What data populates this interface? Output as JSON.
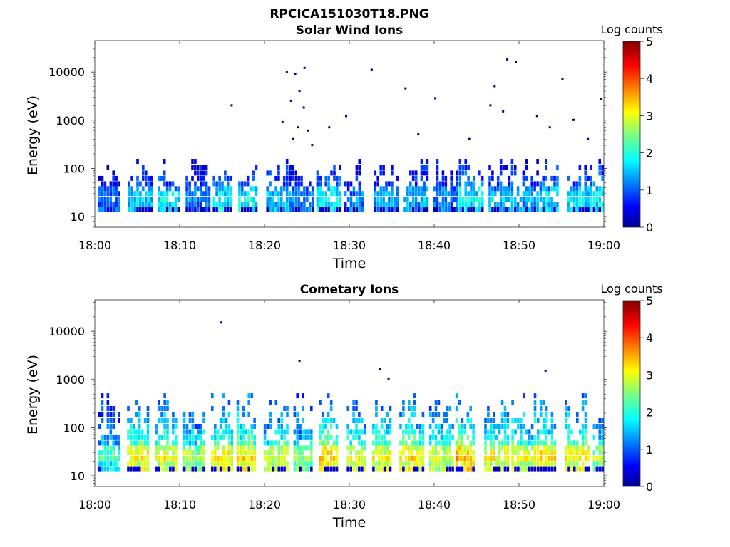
{
  "figure_title": "RPCICA151030T18.PNG",
  "chart_data": [
    {
      "type": "heatmap",
      "title": "Solar Wind Ions",
      "xlabel": "Time",
      "ylabel": "Energy (eV)",
      "x_ticks": [
        "18:00",
        "18:10",
        "18:20",
        "18:30",
        "18:40",
        "18:50",
        "19:00"
      ],
      "x_range": [
        "18:00",
        "19:00"
      ],
      "y_scale": "log",
      "y_ticks": [
        "10",
        "100",
        "1000",
        "10000"
      ],
      "y_range": [
        6,
        45000
      ],
      "colorbar": {
        "label": "Log counts",
        "ticks": [
          "0",
          "1",
          "2",
          "3",
          "4",
          "5"
        ],
        "range": [
          0,
          5
        ],
        "colormap": "jet"
      },
      "bursts": [
        {
          "t": 1.5,
          "level": 1.1
        },
        {
          "t": 5.0,
          "level": 1.6
        },
        {
          "t": 8.5,
          "level": 1.8
        },
        {
          "t": 11.8,
          "level": 1.2
        },
        {
          "t": 15.0,
          "level": 1.8
        },
        {
          "t": 18.0,
          "level": 2.0
        },
        {
          "t": 21.3,
          "level": 1.6
        },
        {
          "t": 24.0,
          "level": 1.2
        },
        {
          "t": 27.2,
          "level": 1.9
        },
        {
          "t": 30.5,
          "level": 1.3
        },
        {
          "t": 34.0,
          "level": 1.4
        },
        {
          "t": 37.5,
          "level": 1.5
        },
        {
          "t": 41.0,
          "level": 1.2
        },
        {
          "t": 44.0,
          "level": 1.9
        },
        {
          "t": 47.5,
          "level": 1.5
        },
        {
          "t": 50.5,
          "level": 1.4
        },
        {
          "t": 53.5,
          "level": 1.8
        },
        {
          "t": 56.8,
          "level": 1.8
        },
        {
          "t": 59.8,
          "level": 1.9
        }
      ],
      "sparse_points": [
        {
          "t": 22.5,
          "e": 10000
        },
        {
          "t": 23.5,
          "e": 9000
        },
        {
          "t": 24.6,
          "e": 12000
        },
        {
          "t": 24.0,
          "e": 4000
        },
        {
          "t": 23.0,
          "e": 2500
        },
        {
          "t": 24.5,
          "e": 1800
        },
        {
          "t": 22.0,
          "e": 900
        },
        {
          "t": 23.8,
          "e": 700
        },
        {
          "t": 25.0,
          "e": 600
        },
        {
          "t": 23.2,
          "e": 400
        },
        {
          "t": 25.5,
          "e": 300
        },
        {
          "t": 16.0,
          "e": 2000
        },
        {
          "t": 32.5,
          "e": 11000
        },
        {
          "t": 36.5,
          "e": 4500
        },
        {
          "t": 40.0,
          "e": 2800
        },
        {
          "t": 48.5,
          "e": 18000
        },
        {
          "t": 49.5,
          "e": 16000
        },
        {
          "t": 47.0,
          "e": 5000
        },
        {
          "t": 46.5,
          "e": 2000
        },
        {
          "t": 48.0,
          "e": 1500
        },
        {
          "t": 52.0,
          "e": 1200
        },
        {
          "t": 55.0,
          "e": 7000
        },
        {
          "t": 56.3,
          "e": 1000
        },
        {
          "t": 59.5,
          "e": 2700
        },
        {
          "t": 29.5,
          "e": 1200
        },
        {
          "t": 27.5,
          "e": 700
        },
        {
          "t": 44.0,
          "e": 400
        },
        {
          "t": 38.0,
          "e": 500
        },
        {
          "t": 53.5,
          "e": 700
        },
        {
          "t": 58.0,
          "e": 400
        }
      ]
    },
    {
      "type": "heatmap",
      "title": "Cometary Ions",
      "xlabel": "Time",
      "ylabel": "Energy (eV)",
      "x_ticks": [
        "18:00",
        "18:10",
        "18:20",
        "18:30",
        "18:40",
        "18:50",
        "19:00"
      ],
      "x_range": [
        "18:00",
        "19:00"
      ],
      "y_scale": "log",
      "y_ticks": [
        "10",
        "100",
        "1000",
        "10000"
      ],
      "y_range": [
        6,
        45000
      ],
      "colorbar": {
        "label": "Log counts",
        "ticks": [
          "0",
          "1",
          "2",
          "3",
          "4",
          "5"
        ],
        "range": [
          0,
          5
        ],
        "colormap": "jet"
      },
      "bursts": [
        {
          "t": 1.5,
          "level": 1.9
        },
        {
          "t": 4.9,
          "level": 3.0
        },
        {
          "t": 8.2,
          "level": 2.9
        },
        {
          "t": 11.5,
          "level": 2.6
        },
        {
          "t": 14.8,
          "level": 3.0
        },
        {
          "t": 17.8,
          "level": 3.1
        },
        {
          "t": 21.0,
          "level": 2.8
        },
        {
          "t": 24.5,
          "level": 2.4
        },
        {
          "t": 27.5,
          "level": 3.3
        },
        {
          "t": 30.8,
          "level": 2.9
        },
        {
          "t": 33.8,
          "level": 3.0
        },
        {
          "t": 37.0,
          "level": 3.1
        },
        {
          "t": 40.5,
          "level": 2.7
        },
        {
          "t": 43.6,
          "level": 3.4
        },
        {
          "t": 47.0,
          "level": 3.0
        },
        {
          "t": 50.2,
          "level": 2.9
        },
        {
          "t": 53.2,
          "level": 3.1
        },
        {
          "t": 56.5,
          "level": 3.0
        },
        {
          "t": 59.8,
          "level": 2.6
        }
      ],
      "sparse_points": [
        {
          "t": 14.8,
          "e": 15000
        },
        {
          "t": 24.0,
          "e": 2400
        },
        {
          "t": 33.5,
          "e": 1600
        },
        {
          "t": 34.5,
          "e": 1000
        },
        {
          "t": 53.0,
          "e": 1500
        }
      ]
    }
  ]
}
